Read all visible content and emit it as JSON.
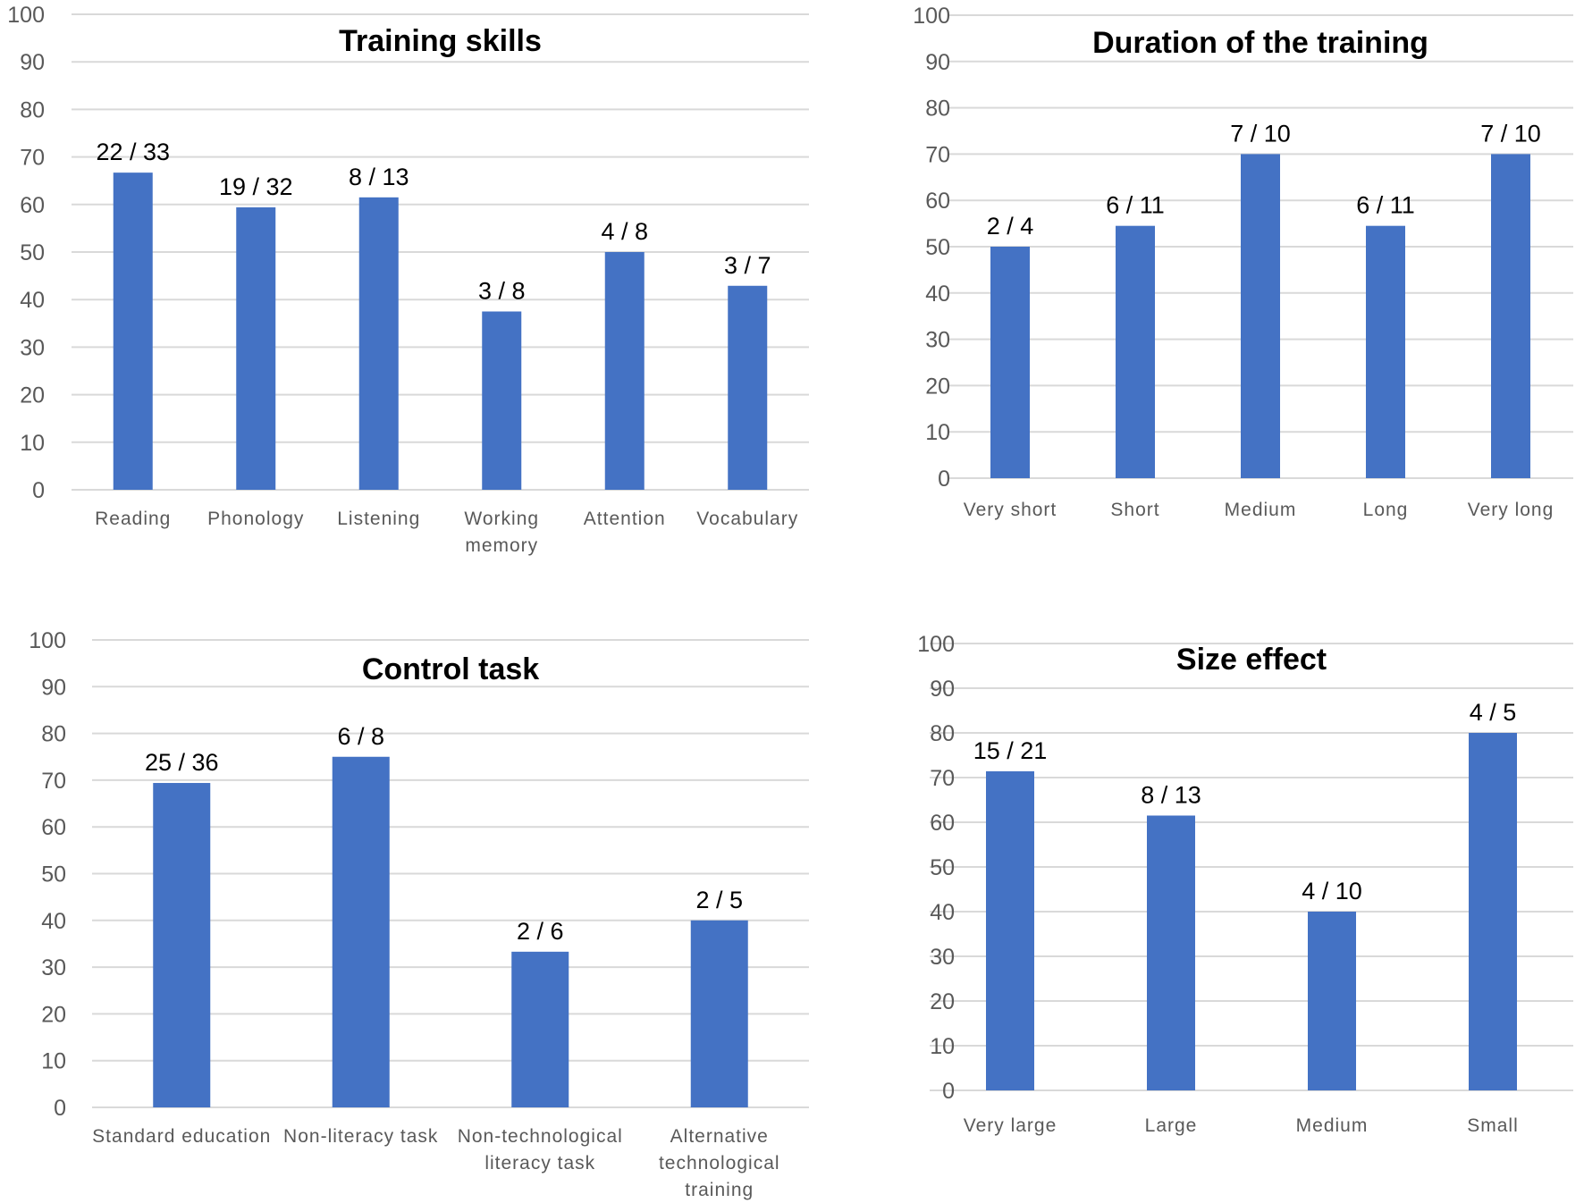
{
  "chart_data": [
    {
      "type": "bar",
      "title": "Training skills",
      "categories": [
        [
          "Reading"
        ],
        [
          "Phonology"
        ],
        [
          "Listening"
        ],
        [
          "Working",
          "memory"
        ],
        [
          "Attention"
        ],
        [
          "Vocabulary"
        ]
      ],
      "values": [
        66.7,
        59.4,
        61.5,
        37.5,
        50,
        42.9
      ],
      "data_labels": [
        "22 / 33",
        "19 / 32",
        "8 /  13",
        "3 / 8",
        "4 / 8",
        "3 / 7"
      ],
      "yticks": [
        "0",
        "10",
        "20",
        "30",
        "40",
        "50",
        "60",
        "70",
        "80",
        "90",
        "100"
      ],
      "ylim": [
        0,
        100
      ]
    },
    {
      "type": "bar",
      "title": "Duration of the training",
      "categories": [
        [
          "Very short"
        ],
        [
          "Short"
        ],
        [
          "Medium"
        ],
        [
          "Long"
        ],
        [
          "Very long"
        ]
      ],
      "values": [
        50,
        54.5,
        70,
        54.5,
        70
      ],
      "data_labels": [
        "2 / 4",
        "6 / 11",
        "7 / 10",
        "6 / 11",
        "7 / 10"
      ],
      "yticks": [
        "0",
        "10",
        "20",
        "30",
        "40",
        "50",
        "60",
        "70",
        "80",
        "90",
        "100"
      ],
      "ylim": [
        0,
        100
      ]
    },
    {
      "type": "bar",
      "title": "Control task",
      "categories": [
        [
          "Standard education"
        ],
        [
          "Non-literacy task"
        ],
        [
          "Non-technological",
          "literacy task"
        ],
        [
          "Alternative",
          "technological",
          "training"
        ]
      ],
      "values": [
        69.4,
        75,
        33.3,
        40
      ],
      "data_labels": [
        "25 / 36",
        "6 / 8",
        "2 / 6",
        "2 / 5"
      ],
      "yticks": [
        "0",
        "10",
        "20",
        "30",
        "40",
        "50",
        "60",
        "70",
        "80",
        "90",
        "100"
      ],
      "ylim": [
        0,
        100
      ]
    },
    {
      "type": "bar",
      "title": "Size effect",
      "categories": [
        [
          "Very large"
        ],
        [
          "Large"
        ],
        [
          "Medium"
        ],
        [
          "Small"
        ]
      ],
      "values": [
        71.4,
        61.5,
        40,
        80
      ],
      "data_labels": [
        "15 / 21",
        "8 / 13",
        "4 / 10",
        "4 / 5"
      ],
      "yticks": [
        "0",
        "10",
        "20",
        "30",
        "40",
        "50",
        "60",
        "70",
        "80",
        "90",
        "100"
      ],
      "ylim": [
        0,
        100
      ]
    }
  ]
}
